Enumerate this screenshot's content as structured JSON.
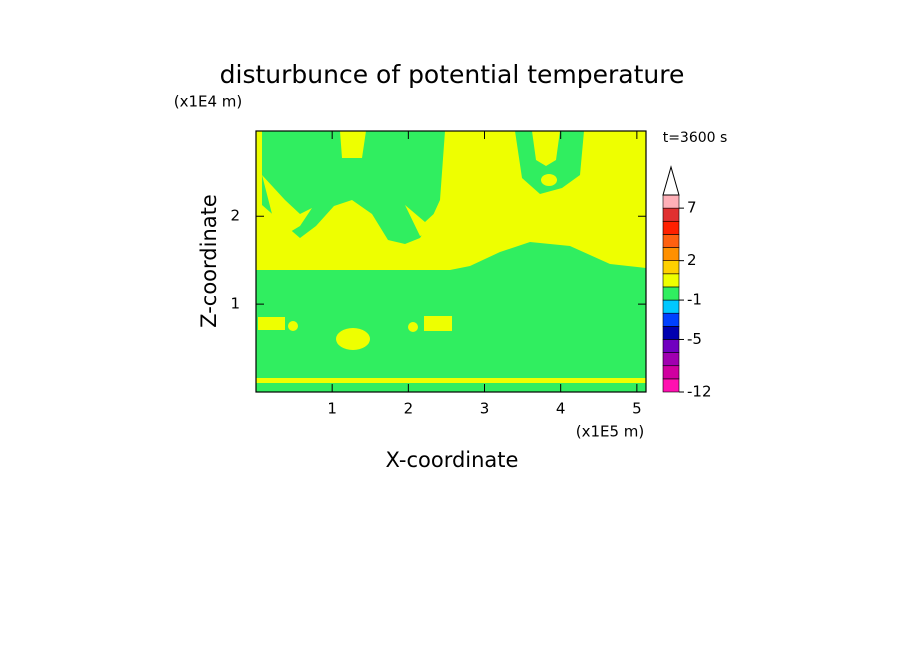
{
  "chart_data": {
    "type": "contour",
    "title": "disturbunce of potential temperature",
    "x_label": "X-coordinate",
    "y_label": "Z-coordinate",
    "x_unit": "(x1E5 m)",
    "y_unit": "(x1E4 m)",
    "annotation": "t=3600 s",
    "xlim": [
      0,
      5.12
    ],
    "xticks": [
      1,
      2,
      3,
      4,
      5
    ],
    "ylim": [
      0,
      2.97
    ],
    "yticks": [
      1,
      2
    ],
    "colorbar": {
      "levels": [
        -12,
        -10,
        -8,
        -7,
        -5,
        -4,
        -3,
        -1,
        0,
        1,
        2,
        3,
        5,
        6,
        7,
        9
      ],
      "colors": [
        "#ff10b0",
        "#d000a0",
        "#a000b0",
        "#7000c0",
        "#0000b0",
        "#0040ff",
        "#00c8ff",
        "#30ee60",
        "#eeff00",
        "#ffd000",
        "#ff9000",
        "#ff6010",
        "#ff2000",
        "#e03030",
        "#ffb0b8"
      ],
      "ticks": [
        -12,
        -5,
        -1,
        2,
        7
      ]
    }
  }
}
